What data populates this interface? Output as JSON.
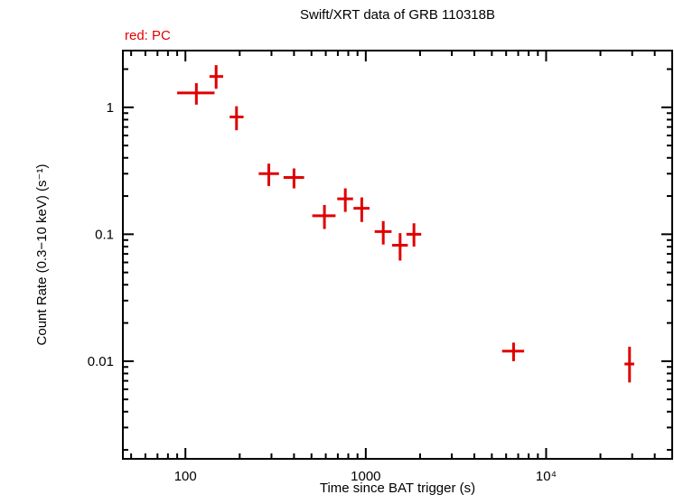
{
  "chart_data": {
    "type": "scatter",
    "title": "Swift/XRT data of GRB 110318B",
    "annotation": "red: PC",
    "xlabel": "Time since BAT trigger (s)",
    "ylabel": "Count Rate (0.3−10 keV) (s⁻¹)",
    "xscale": "log",
    "yscale": "log",
    "xlim": [
      45,
      50000
    ],
    "ylim": [
      0.0017,
      2.8
    ],
    "grid": false,
    "legend_position": "top-left",
    "frame_color": "#000000",
    "marker_color": "#e00000",
    "x_ticks": [
      {
        "value": 100,
        "label": "100"
      },
      {
        "value": 1000,
        "label": "1000"
      },
      {
        "value": 10000,
        "label": "10⁴"
      }
    ],
    "y_ticks": [
      {
        "value": 0.01,
        "label": "0.01"
      },
      {
        "value": 0.1,
        "label": "0.1"
      },
      {
        "value": 1,
        "label": "1"
      }
    ],
    "series": [
      {
        "name": "PC mode",
        "color": "#e00000",
        "points": [
          {
            "x": 115,
            "xerr_lo": 25,
            "xerr_hi": 30,
            "y": 1.3,
            "yerr_lo": 0.25,
            "yerr_hi": 0.25
          },
          {
            "x": 148,
            "xerr_lo": 12,
            "xerr_hi": 14,
            "y": 1.75,
            "yerr_lo": 0.35,
            "yerr_hi": 0.4
          },
          {
            "x": 192,
            "xerr_lo": 16,
            "xerr_hi": 18,
            "y": 0.84,
            "yerr_lo": 0.18,
            "yerr_hi": 0.18
          },
          {
            "x": 290,
            "xerr_lo": 35,
            "xerr_hi": 40,
            "y": 0.3,
            "yerr_lo": 0.06,
            "yerr_hi": 0.06
          },
          {
            "x": 400,
            "xerr_lo": 50,
            "xerr_hi": 55,
            "y": 0.28,
            "yerr_lo": 0.05,
            "yerr_hi": 0.05
          },
          {
            "x": 590,
            "xerr_lo": 85,
            "xerr_hi": 90,
            "y": 0.14,
            "yerr_lo": 0.03,
            "yerr_hi": 0.03
          },
          {
            "x": 770,
            "xerr_lo": 75,
            "xerr_hi": 80,
            "y": 0.19,
            "yerr_lo": 0.04,
            "yerr_hi": 0.04
          },
          {
            "x": 950,
            "xerr_lo": 95,
            "xerr_hi": 100,
            "y": 0.16,
            "yerr_lo": 0.035,
            "yerr_hi": 0.035
          },
          {
            "x": 1250,
            "xerr_lo": 130,
            "xerr_hi": 140,
            "y": 0.105,
            "yerr_lo": 0.022,
            "yerr_hi": 0.022
          },
          {
            "x": 1550,
            "xerr_lo": 150,
            "xerr_hi": 160,
            "y": 0.082,
            "yerr_lo": 0.02,
            "yerr_hi": 0.02
          },
          {
            "x": 1850,
            "xerr_lo": 170,
            "xerr_hi": 180,
            "y": 0.1,
            "yerr_lo": 0.02,
            "yerr_hi": 0.022
          },
          {
            "x": 6600,
            "xerr_lo": 900,
            "xerr_hi": 950,
            "y": 0.012,
            "yerr_lo": 0.002,
            "yerr_hi": 0.002
          },
          {
            "x": 29000,
            "xerr_lo": 1800,
            "xerr_hi": 1800,
            "y": 0.0095,
            "yerr_lo": 0.0027,
            "yerr_hi": 0.0035
          }
        ]
      }
    ]
  }
}
